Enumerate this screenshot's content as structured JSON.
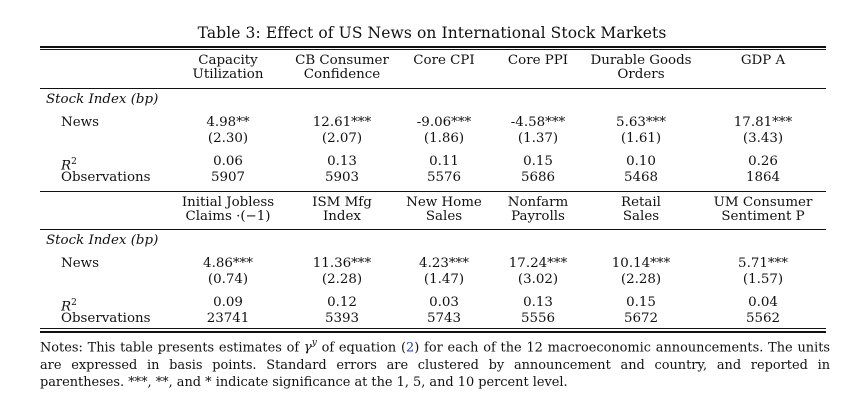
{
  "title": "Table 3: Effect of US News on International Stock Markets",
  "row_labels": {
    "section": "Stock Index (bp)",
    "news": "News",
    "r2": "R",
    "r2_sup": "2",
    "obs": "Observations"
  },
  "panel1": {
    "headers": [
      {
        "line1": "Capacity",
        "line2": "Utilization"
      },
      {
        "line1": "CB Consumer",
        "line2": "Confidence"
      },
      {
        "line1": "Core CPI",
        "line2": ""
      },
      {
        "line1": "Core PPI",
        "line2": ""
      },
      {
        "line1": "Durable Goods",
        "line2": "Orders"
      },
      {
        "line1": "GDP A",
        "line2": ""
      }
    ],
    "news": [
      "4.98**",
      "12.61***",
      "-9.06***",
      "-4.58***",
      "5.63***",
      "17.81***"
    ],
    "se": [
      "(2.30)",
      "(2.07)",
      "(1.86)",
      "(1.37)",
      "(1.61)",
      "(3.43)"
    ],
    "r2": [
      "0.06",
      "0.13",
      "0.11",
      "0.15",
      "0.10",
      "0.26"
    ],
    "obs": [
      "5907",
      "5903",
      "5576",
      "5686",
      "5468",
      "1864"
    ]
  },
  "panel2": {
    "headers": [
      {
        "line1": "Initial Jobless",
        "line2": "Claims ·(−1)"
      },
      {
        "line1": "ISM Mfg",
        "line2": "Index"
      },
      {
        "line1": "New Home",
        "line2": "Sales"
      },
      {
        "line1": "Nonfarm",
        "line2": "Payrolls"
      },
      {
        "line1": "Retail",
        "line2": "Sales"
      },
      {
        "line1": "UM Consumer",
        "line2": "Sentiment P"
      }
    ],
    "news": [
      "4.86***",
      "11.36***",
      "4.23***",
      "17.24***",
      "10.14***",
      "5.71***"
    ],
    "se": [
      "(0.74)",
      "(2.28)",
      "(1.47)",
      "(3.02)",
      "(2.28)",
      "(1.57)"
    ],
    "r2": [
      "0.09",
      "0.12",
      "0.03",
      "0.13",
      "0.15",
      "0.04"
    ],
    "obs": [
      "23741",
      "5393",
      "5743",
      "5556",
      "5672",
      "5562"
    ]
  },
  "notes": {
    "part1": "Notes: This table presents estimates of ",
    "gamma": "γ",
    "gamma_sup": "y",
    "part2": " of equation (",
    "eq_ref": "2",
    "part3": ") for each of the 12 macroeconomic announcements. The units are expressed in basis points. Standard errors are clustered by announcement and country, and reported in parentheses. ***, **, and * indicate significance at the 1, 5, and 10 percent level."
  }
}
